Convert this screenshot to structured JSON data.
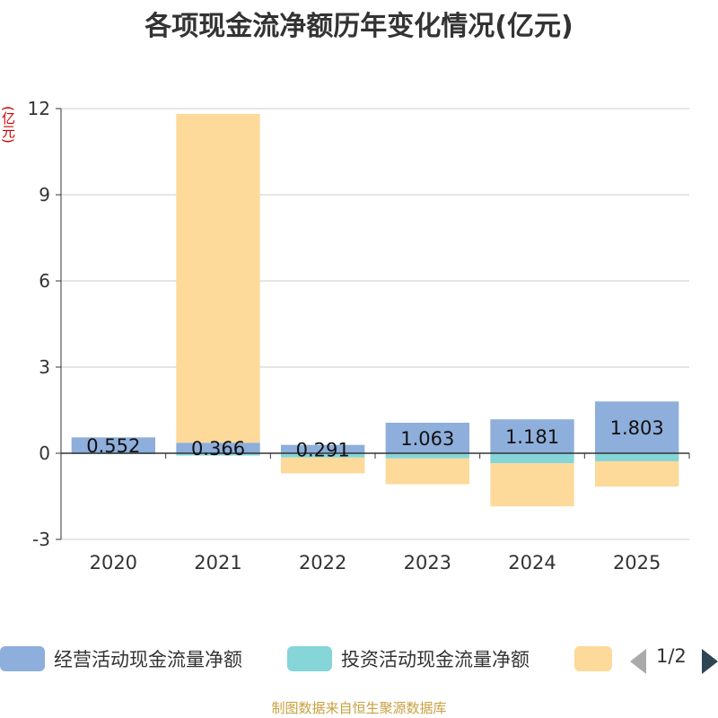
{
  "chart_data": {
    "type": "bar",
    "stacked": true,
    "title": "各项现金流净额历年变化情况(亿元)",
    "ylabel": "(亿元)",
    "ylim": [
      -3,
      12
    ],
    "yticks": [
      12,
      9,
      6,
      3,
      0,
      -3
    ],
    "categories": [
      "2020",
      "2021",
      "2022",
      "2023",
      "2024",
      "2025"
    ],
    "series": [
      {
        "name": "经营活动现金流量净额",
        "color": "#8eaedb",
        "values": [
          0.552,
          0.366,
          0.291,
          1.063,
          1.181,
          1.803
        ],
        "labels": [
          "0.552",
          "0.366",
          "0.291",
          "1.063",
          "1.181",
          "1.803"
        ]
      },
      {
        "name": "投资活动现金流量净额",
        "color": "#86d5d8",
        "values": [
          -0.03,
          -0.08,
          -0.15,
          -0.18,
          -0.35,
          -0.28
        ]
      },
      {
        "name": "",
        "color": "#fdd99a",
        "values": [
          0.0,
          11.45,
          -0.55,
          -0.9,
          -1.5,
          -0.88
        ]
      }
    ],
    "grid": true,
    "legend_position": "bottom"
  },
  "legend": {
    "items": [
      {
        "label": "经营活动现金流量净额",
        "color": "#8eaedb"
      },
      {
        "label": "投资活动现金流量净额",
        "color": "#86d5d8"
      },
      {
        "label": "",
        "color": "#fdd99a"
      }
    ],
    "pager": "1/2"
  },
  "footer": "制图数据来自恒生聚源数据库"
}
